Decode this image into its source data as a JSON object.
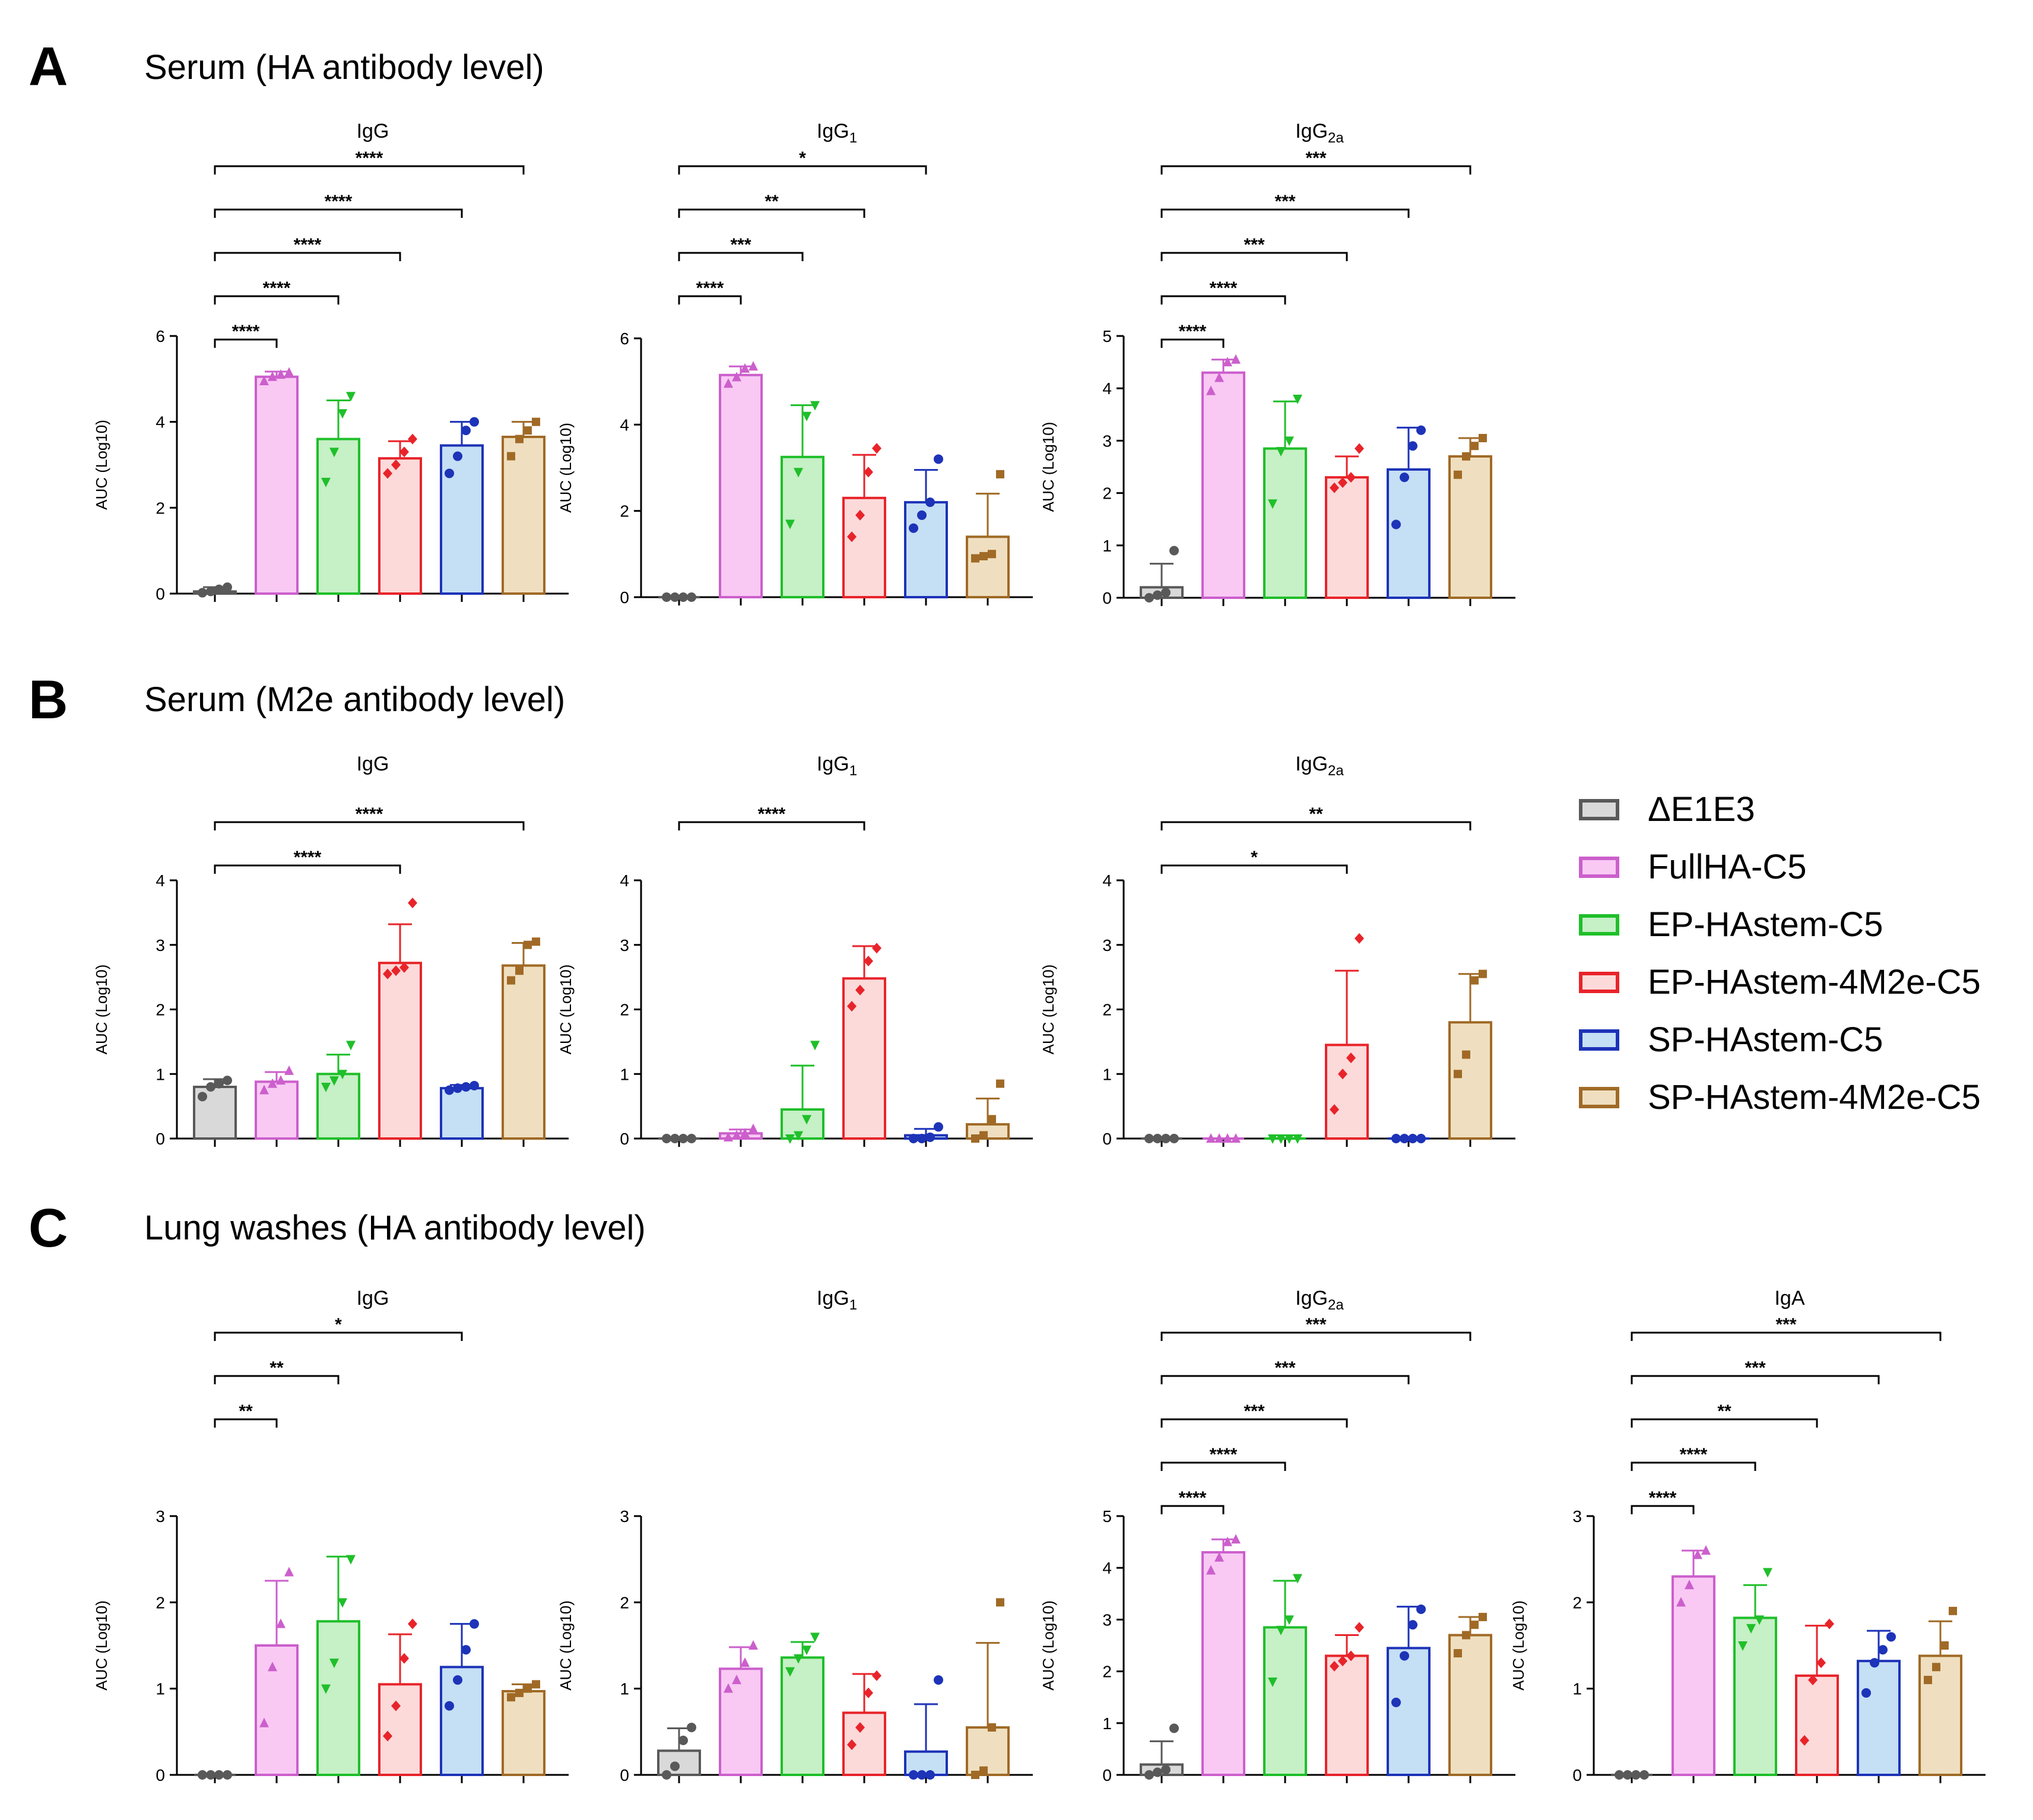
{
  "panels": {
    "A": {
      "letter": "A",
      "title": "Serum (HA antibody level)"
    },
    "B": {
      "letter": "B",
      "title": "Serum (M2e antibody level)"
    },
    "C": {
      "letter": "C",
      "title": "Lung washes (HA antibody level)"
    }
  },
  "groups": [
    {
      "name": "ΔE1E3",
      "fill": "#d9d9d9",
      "stroke": "#595959",
      "marker": "circle"
    },
    {
      "name": "FullHA-C5",
      "fill": "#f9c9f4",
      "stroke": "#cc5fcc",
      "marker": "triangle-up"
    },
    {
      "name": "EP-HAstem-C5",
      "fill": "#c6f0c6",
      "stroke": "#1fbf2a",
      "marker": "triangle-down"
    },
    {
      "name": "EP-HAstem-4M2e-C5",
      "fill": "#fcdada",
      "stroke": "#e8242a",
      "marker": "diamond"
    },
    {
      "name": "SP-HAstem-C5",
      "fill": "#c5dff5",
      "stroke": "#1d33b8",
      "marker": "circle"
    },
    {
      "name": "SP-HAstem-4M2e-C5",
      "fill": "#efdfc0",
      "stroke": "#a06a26",
      "marker": "square"
    }
  ],
  "chart_data": [
    {
      "id": "A1",
      "panel": "A",
      "type": "bar",
      "title": "IgG",
      "title_sub": "",
      "ylabel": "AUC (Log10)",
      "ylim": [
        0,
        6
      ],
      "yticks": [
        0,
        2,
        4,
        6
      ],
      "means": [
        0.05,
        5.05,
        3.6,
        3.15,
        3.45,
        3.65
      ],
      "sd": [
        0.1,
        0.12,
        0.9,
        0.4,
        0.55,
        0.35
      ],
      "points": [
        [
          0.02,
          0.05,
          0.1,
          0.15
        ],
        [
          4.95,
          5.05,
          5.1,
          5.15
        ],
        [
          2.6,
          3.3,
          4.2,
          4.6
        ],
        [
          2.8,
          3.0,
          3.3,
          3.6
        ],
        [
          2.8,
          3.2,
          3.8,
          4.0
        ],
        [
          3.2,
          3.6,
          3.8,
          4.0
        ]
      ],
      "brackets": [
        {
          "to": 1,
          "label": "****"
        },
        {
          "to": 2,
          "label": "****"
        },
        {
          "to": 3,
          "label": "****"
        },
        {
          "to": 4,
          "label": "****"
        },
        {
          "to": 5,
          "label": "****"
        }
      ]
    },
    {
      "id": "A2",
      "panel": "A",
      "type": "bar",
      "title": "IgG",
      "title_sub": "1",
      "ylabel": "AUC (Log10)",
      "ylim": [
        0,
        6
      ],
      "yticks": [
        0,
        2,
        4,
        6
      ],
      "means": [
        0,
        5.15,
        3.25,
        2.3,
        2.2,
        1.4
      ],
      "sd": [
        0,
        0.2,
        1.2,
        1.0,
        0.75,
        1.0
      ],
      "points": [
        [
          0,
          0,
          0,
          0
        ],
        [
          4.95,
          5.1,
          5.3,
          5.35
        ],
        [
          1.7,
          2.9,
          4.2,
          4.45
        ],
        [
          1.4,
          1.9,
          2.9,
          3.45
        ],
        [
          1.6,
          1.9,
          2.2,
          3.2
        ],
        [
          0.9,
          0.95,
          1.0,
          2.85
        ]
      ],
      "brackets": [
        {
          "to": 1,
          "label": "****"
        },
        {
          "to": 2,
          "label": "***"
        },
        {
          "to": 3,
          "label": "**"
        },
        {
          "to": 4,
          "label": "*"
        }
      ]
    },
    {
      "id": "A3",
      "panel": "A",
      "type": "bar",
      "title": "IgG",
      "title_sub": "2a",
      "ylabel": "AUC (Log10)",
      "ylim": [
        0,
        5
      ],
      "yticks": [
        0,
        1,
        2,
        3,
        4,
        5
      ],
      "means": [
        0.2,
        4.3,
        2.85,
        2.3,
        2.45,
        2.7
      ],
      "sd": [
        0.45,
        0.25,
        0.9,
        0.4,
        0.8,
        0.35
      ],
      "points": [
        [
          0.0,
          0.05,
          0.1,
          0.9
        ],
        [
          3.95,
          4.2,
          4.5,
          4.55
        ],
        [
          1.8,
          2.8,
          3.0,
          3.8
        ],
        [
          2.1,
          2.2,
          2.3,
          2.85
        ],
        [
          1.4,
          2.3,
          2.9,
          3.2
        ],
        [
          2.35,
          2.7,
          2.9,
          3.05
        ]
      ],
      "brackets": [
        {
          "to": 1,
          "label": "****"
        },
        {
          "to": 2,
          "label": "****"
        },
        {
          "to": 3,
          "label": "***"
        },
        {
          "to": 4,
          "label": "***"
        },
        {
          "to": 5,
          "label": "***"
        }
      ]
    },
    {
      "id": "B1",
      "panel": "B",
      "type": "bar",
      "title": "IgG",
      "title_sub": "",
      "ylabel": "AUC (Log10)",
      "ylim": [
        0,
        4
      ],
      "yticks": [
        0,
        1,
        2,
        3,
        4
      ],
      "means": [
        0.8,
        0.88,
        1.0,
        2.72,
        0.78,
        2.68
      ],
      "sd": [
        0.12,
        0.15,
        0.3,
        0.6,
        0.05,
        0.35
      ],
      "points": [
        [
          0.65,
          0.8,
          0.85,
          0.9
        ],
        [
          0.75,
          0.85,
          0.9,
          1.05
        ],
        [
          0.8,
          0.9,
          1.0,
          1.45
        ],
        [
          2.55,
          2.6,
          2.65,
          3.65
        ],
        [
          0.75,
          0.78,
          0.8,
          0.82
        ],
        [
          2.45,
          2.6,
          3.0,
          3.05
        ]
      ],
      "brackets": [
        {
          "to": 3,
          "label": "****"
        },
        {
          "to": 5,
          "label": "****"
        }
      ]
    },
    {
      "id": "B2",
      "panel": "B",
      "type": "bar",
      "title": "IgG",
      "title_sub": "1",
      "ylabel": "AUC (Log10)",
      "ylim": [
        0,
        4
      ],
      "yticks": [
        0,
        1,
        2,
        3,
        4
      ],
      "means": [
        0,
        0.08,
        0.45,
        2.48,
        0.05,
        0.22
      ],
      "sd": [
        0,
        0.06,
        0.68,
        0.5,
        0.1,
        0.4
      ],
      "points": [
        [
          0,
          0,
          0,
          0
        ],
        [
          0.02,
          0.05,
          0.08,
          0.15
        ],
        [
          0,
          0.05,
          0.3,
          1.45
        ],
        [
          2.05,
          2.3,
          2.75,
          2.95
        ],
        [
          0,
          0,
          0.02,
          0.18
        ],
        [
          0,
          0.05,
          0.3,
          0.85
        ]
      ],
      "brackets": [
        {
          "to": 3,
          "label": "****"
        }
      ]
    },
    {
      "id": "B3",
      "panel": "B",
      "type": "bar",
      "title": "IgG",
      "title_sub": "2a",
      "ylabel": "AUC (Log10)",
      "ylim": [
        0,
        4
      ],
      "yticks": [
        0,
        1,
        2,
        3,
        4
      ],
      "means": [
        0,
        0,
        0,
        1.45,
        0,
        1.8
      ],
      "sd": [
        0,
        0,
        0,
        1.15,
        0,
        0.75
      ],
      "points": [
        [
          0,
          0,
          0,
          0
        ],
        [
          0,
          0,
          0,
          0
        ],
        [
          0,
          0,
          0,
          0
        ],
        [
          0.45,
          1.0,
          1.25,
          3.1
        ],
        [
          0,
          0,
          0,
          0
        ],
        [
          1.0,
          1.3,
          2.45,
          2.55
        ]
      ],
      "brackets": [
        {
          "to": 3,
          "label": "*"
        },
        {
          "to": 5,
          "label": "**"
        }
      ]
    },
    {
      "id": "C1",
      "panel": "C",
      "type": "bar",
      "title": "IgG",
      "title_sub": "",
      "ylabel": "AUC (Log10)",
      "ylim": [
        0,
        3
      ],
      "yticks": [
        0,
        1,
        2,
        3
      ],
      "means": [
        0,
        1.5,
        1.78,
        1.05,
        1.25,
        0.97
      ],
      "sd": [
        0,
        0.75,
        0.75,
        0.58,
        0.5,
        0.08
      ],
      "points": [
        [
          0,
          0,
          0,
          0
        ],
        [
          0.6,
          1.25,
          1.75,
          2.35
        ],
        [
          1.0,
          1.3,
          2.0,
          2.5
        ],
        [
          0.45,
          0.8,
          1.35,
          1.75
        ],
        [
          0.8,
          1.1,
          1.45,
          1.75
        ],
        [
          0.9,
          0.95,
          1.0,
          1.05
        ]
      ],
      "brackets": [
        {
          "to": 1,
          "label": "**"
        },
        {
          "to": 2,
          "label": "**"
        },
        {
          "to": 4,
          "label": "*"
        }
      ]
    },
    {
      "id": "C2",
      "panel": "C",
      "type": "bar",
      "title": "IgG",
      "title_sub": "1",
      "ylabel": "AUC (Log10)",
      "ylim": [
        0,
        3
      ],
      "yticks": [
        0,
        1,
        2,
        3
      ],
      "means": [
        0.28,
        1.23,
        1.36,
        0.72,
        0.27,
        0.55
      ],
      "sd": [
        0.26,
        0.25,
        0.18,
        0.45,
        0.55,
        0.98
      ],
      "points": [
        [
          0,
          0.1,
          0.4,
          0.55
        ],
        [
          1.0,
          1.1,
          1.3,
          1.5
        ],
        [
          1.2,
          1.35,
          1.45,
          1.6
        ],
        [
          0.35,
          0.55,
          0.95,
          1.15
        ],
        [
          0,
          0,
          0,
          1.1
        ],
        [
          0,
          0.05,
          0.55,
          2.0
        ]
      ],
      "brackets": []
    },
    {
      "id": "C3",
      "panel": "C",
      "type": "bar",
      "title": "IgG",
      "title_sub": "2a",
      "ylabel": "AUC (Log10)",
      "ylim": [
        0,
        5
      ],
      "yticks": [
        0,
        1,
        2,
        3,
        4,
        5
      ],
      "means": [
        0.2,
        4.3,
        2.85,
        2.3,
        2.45,
        2.7
      ],
      "sd": [
        0.45,
        0.25,
        0.9,
        0.4,
        0.8,
        0.35
      ],
      "points": [
        [
          0.0,
          0.05,
          0.1,
          0.9
        ],
        [
          3.95,
          4.2,
          4.5,
          4.55
        ],
        [
          1.8,
          2.8,
          3.0,
          3.8
        ],
        [
          2.1,
          2.2,
          2.3,
          2.85
        ],
        [
          1.4,
          2.3,
          2.9,
          3.2
        ],
        [
          2.35,
          2.7,
          2.9,
          3.05
        ]
      ],
      "brackets": [
        {
          "to": 1,
          "label": "****"
        },
        {
          "to": 2,
          "label": "****"
        },
        {
          "to": 3,
          "label": "***"
        },
        {
          "to": 4,
          "label": "***"
        },
        {
          "to": 5,
          "label": "***"
        }
      ]
    },
    {
      "id": "C4",
      "panel": "C",
      "type": "bar",
      "title": "IgA",
      "title_sub": "",
      "ylabel": "AUC (Log10)",
      "ylim": [
        0,
        3
      ],
      "yticks": [
        0,
        1,
        2,
        3
      ],
      "means": [
        0,
        2.3,
        1.82,
        1.15,
        1.32,
        1.38
      ],
      "sd": [
        0,
        0.3,
        0.38,
        0.58,
        0.35,
        0.4
      ],
      "points": [
        [
          0,
          0,
          0,
          0
        ],
        [
          2.0,
          2.2,
          2.55,
          2.6
        ],
        [
          1.5,
          1.7,
          1.8,
          2.35
        ],
        [
          0.4,
          1.1,
          1.3,
          1.75
        ],
        [
          0.95,
          1.3,
          1.45,
          1.6
        ],
        [
          1.1,
          1.25,
          1.5,
          1.9
        ]
      ],
      "brackets": [
        {
          "to": 1,
          "label": "****"
        },
        {
          "to": 2,
          "label": "****"
        },
        {
          "to": 3,
          "label": "**"
        },
        {
          "to": 4,
          "label": "***"
        },
        {
          "to": 5,
          "label": "***"
        }
      ]
    }
  ]
}
